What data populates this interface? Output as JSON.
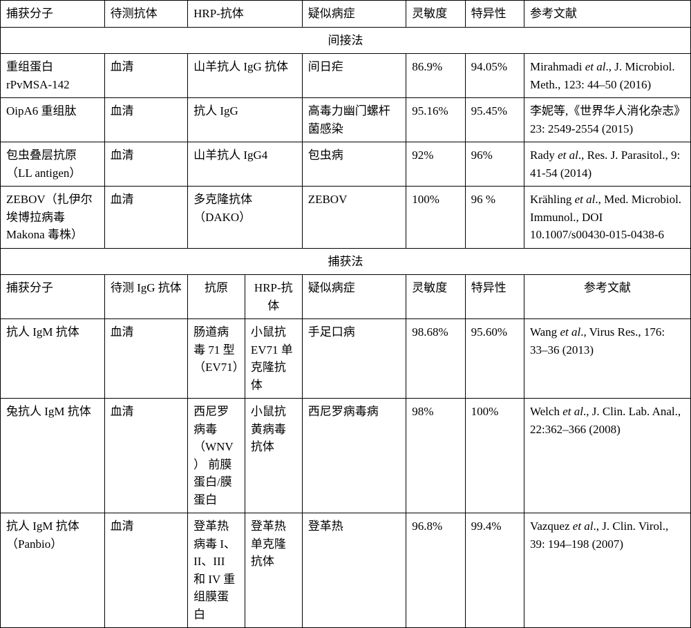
{
  "topHeaders": {
    "c1": "捕获分子",
    "c2": "待测抗体",
    "c3": "HRP-抗体",
    "c4": "疑似病症",
    "c5": "灵敏度",
    "c6": "特异性",
    "c7": "参考文献"
  },
  "sectionIndirect": "间接法",
  "indirectRows": [
    {
      "capture": "重组蛋白 rPvMSA-142",
      "antibody": "血清",
      "hrp": "山羊抗人 IgG 抗体",
      "disease": "间日疟",
      "sensitivity": "86.9%",
      "specificity": "94.05%",
      "refItalic": "et al",
      "refPrefix": "Mirahmadi ",
      "refSuffix": "., J. Microbiol. Meth., 123: 44–50 (2016)"
    },
    {
      "capture": "OipA6 重组肽",
      "antibody": "血清",
      "hrp": "抗人 IgG",
      "disease": "高毒力幽门螺杆菌感染",
      "sensitivity": "95.16%",
      "specificity": "95.45%",
      "refPrefix": "李妮等,《世界华人消化杂志》23: 2549-2554 (2015)",
      "refItalic": "",
      "refSuffix": ""
    },
    {
      "capture": "包虫叠层抗原 （LL antigen）",
      "antibody": "血清",
      "hrp": "山羊抗人 IgG4",
      "disease": "包虫病",
      "sensitivity": "92%",
      "specificity": "96%",
      "refPrefix": "Rady ",
      "refItalic": "et al",
      "refSuffix": "., Res. J. Parasitol., 9: 41-54 (2014)"
    },
    {
      "capture": "ZEBOV（扎伊尔埃博拉病毒 Makona 毒株）",
      "antibody": "血清",
      "hrp": "多克隆抗体 （DAKO）",
      "disease": "ZEBOV",
      "sensitivity": "100%",
      "specificity": "96 %",
      "refPrefix": "Krähling ",
      "refItalic": "et al",
      "refSuffix": "., Med. Microbiol. Immunol., DOI 10.1007/s00430-015-0438-6"
    }
  ],
  "sectionCapture": "捕获法",
  "captureHeaders": {
    "c1": "捕获分子",
    "c2": "待测 IgG 抗体",
    "c3": "抗原",
    "c4": "HRP-抗体",
    "c5": "疑似病症",
    "c6": "灵敏度",
    "c7": "特异性",
    "c8": "参考文献"
  },
  "captureRows": [
    {
      "capture": "抗人 IgM 抗体",
      "igg": "血清",
      "antigen": "肠道病毒 71 型 （EV71）",
      "hrp": "小鼠抗 EV71 单克隆抗体",
      "disease": "手足口病",
      "sensitivity": "98.68%",
      "specificity": "95.60%",
      "refPrefix": "Wang ",
      "refItalic": "et al",
      "refSuffix": "., Virus Res., 176: 33–36 (2013)"
    },
    {
      "capture": "兔抗人 IgM 抗体",
      "igg": "血清",
      "antigen": "西尼罗病毒 （WNV） 前膜蛋白/膜蛋白",
      "hrp": "小鼠抗黄病毒抗体",
      "disease": "西尼罗病毒病",
      "sensitivity": "98%",
      "specificity": "100%",
      "refPrefix": "Welch ",
      "refItalic": "et al",
      "refSuffix": "., J. Clin. Lab. Anal., 22:362–366 (2008)"
    },
    {
      "capture": "抗人 IgM 抗体（Panbio）",
      "igg": "血清",
      "antigen": "登革热病毒 I、II、III 和 IV 重组膜蛋白",
      "hrp": "登革热单克隆抗体",
      "disease": "登革热",
      "sensitivity": "96.8%",
      "specificity": "99.4%",
      "refPrefix": "Vazquez ",
      "refItalic": "et al",
      "refSuffix": "., J. Clin. Virol., 39: 194–198 (2007)"
    }
  ]
}
